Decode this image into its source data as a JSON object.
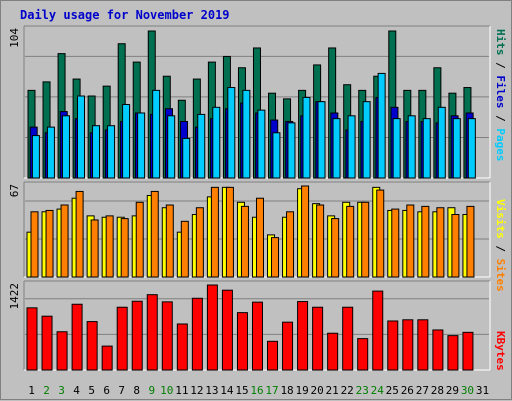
{
  "title": "Daily usage for November 2019",
  "colors": {
    "hits": "#007050",
    "files": "#0000cc",
    "pages": "#00ccff",
    "visits": "#ffff00",
    "sites": "#ff8000",
    "kbytes": "#ff0000",
    "weekday_label": "#000000",
    "weekend_label": "#007f00",
    "title": "#0000cc",
    "background": "#c0c0c0",
    "panel": "#c0c0c0"
  },
  "chart_data": [
    {
      "type": "bar",
      "panel": "hits-files-pages",
      "max_label": "104",
      "ylim": [
        0,
        104
      ],
      "legend": [
        "Pages",
        "Files",
        "Hits"
      ],
      "x": [
        1,
        2,
        3,
        4,
        5,
        6,
        7,
        8,
        9,
        10,
        11,
        12,
        13,
        14,
        15,
        16,
        17,
        18,
        19,
        20,
        21,
        22,
        23,
        24,
        25,
        26,
        27,
        28,
        29,
        30,
        31
      ],
      "series": [
        {
          "name": "Hits",
          "values": [
            62,
            68,
            88,
            70,
            58,
            65,
            95,
            82,
            104,
            72,
            55,
            70,
            82,
            86,
            78,
            92,
            60,
            56,
            62,
            80,
            92,
            66,
            62,
            72,
            104,
            62,
            62,
            78,
            60,
            64,
            0
          ]
        },
        {
          "name": "Files",
          "values": [
            36,
            32,
            47,
            42,
            32,
            34,
            40,
            46,
            45,
            49,
            40,
            36,
            42,
            49,
            53,
            46,
            41,
            40,
            44,
            54,
            46,
            34,
            40,
            57,
            50,
            40,
            40,
            39,
            44,
            46,
            0
          ]
        },
        {
          "name": "Pages",
          "values": [
            30,
            36,
            44,
            58,
            37,
            37,
            52,
            46,
            62,
            44,
            28,
            45,
            50,
            64,
            62,
            48,
            32,
            39,
            57,
            54,
            42,
            44,
            54,
            74,
            42,
            44,
            42,
            50,
            42,
            42,
            0
          ]
        }
      ]
    },
    {
      "type": "bar",
      "panel": "visits-sites",
      "max_label": "67",
      "ylim": [
        0,
        67
      ],
      "legend": [
        "Sites",
        "Visits"
      ],
      "x": [
        1,
        2,
        3,
        4,
        5,
        6,
        7,
        8,
        9,
        10,
        11,
        12,
        13,
        14,
        15,
        16,
        17,
        18,
        19,
        20,
        21,
        22,
        23,
        24,
        25,
        26,
        27,
        28,
        29,
        30,
        31
      ],
      "series": [
        {
          "name": "Visits",
          "values": [
            33,
            48,
            50,
            58,
            45,
            44,
            44,
            45,
            60,
            51,
            33,
            46,
            59,
            66,
            55,
            44,
            31,
            44,
            65,
            54,
            45,
            55,
            55,
            66,
            49,
            49,
            48,
            48,
            51,
            46,
            0
          ]
        },
        {
          "name": "Sites",
          "values": [
            48,
            49,
            53,
            63,
            42,
            45,
            43,
            55,
            63,
            53,
            41,
            51,
            66,
            66,
            52,
            58,
            29,
            48,
            67,
            53,
            43,
            52,
            55,
            64,
            50,
            53,
            52,
            51,
            46,
            52,
            0
          ]
        }
      ]
    },
    {
      "type": "bar",
      "panel": "kbytes",
      "max_label": "1422",
      "ylim": [
        0,
        1422
      ],
      "legend": [
        "KBytes"
      ],
      "x": [
        1,
        2,
        3,
        4,
        5,
        6,
        7,
        8,
        9,
        10,
        11,
        12,
        13,
        14,
        15,
        16,
        17,
        18,
        19,
        20,
        21,
        22,
        23,
        24,
        25,
        26,
        27,
        28,
        29,
        30,
        31
      ],
      "series": [
        {
          "name": "KBytes",
          "values": [
            1040,
            900,
            640,
            1100,
            810,
            400,
            1050,
            1150,
            1260,
            1140,
            770,
            1200,
            1422,
            1335,
            960,
            1135,
            480,
            800,
            1145,
            1050,
            615,
            1050,
            525,
            1320,
            820,
            840,
            840,
            670,
            575,
            630,
            0
          ]
        }
      ]
    }
  ],
  "weekends": [
    2,
    3,
    9,
    10,
    16,
    17,
    23,
    24,
    30
  ]
}
